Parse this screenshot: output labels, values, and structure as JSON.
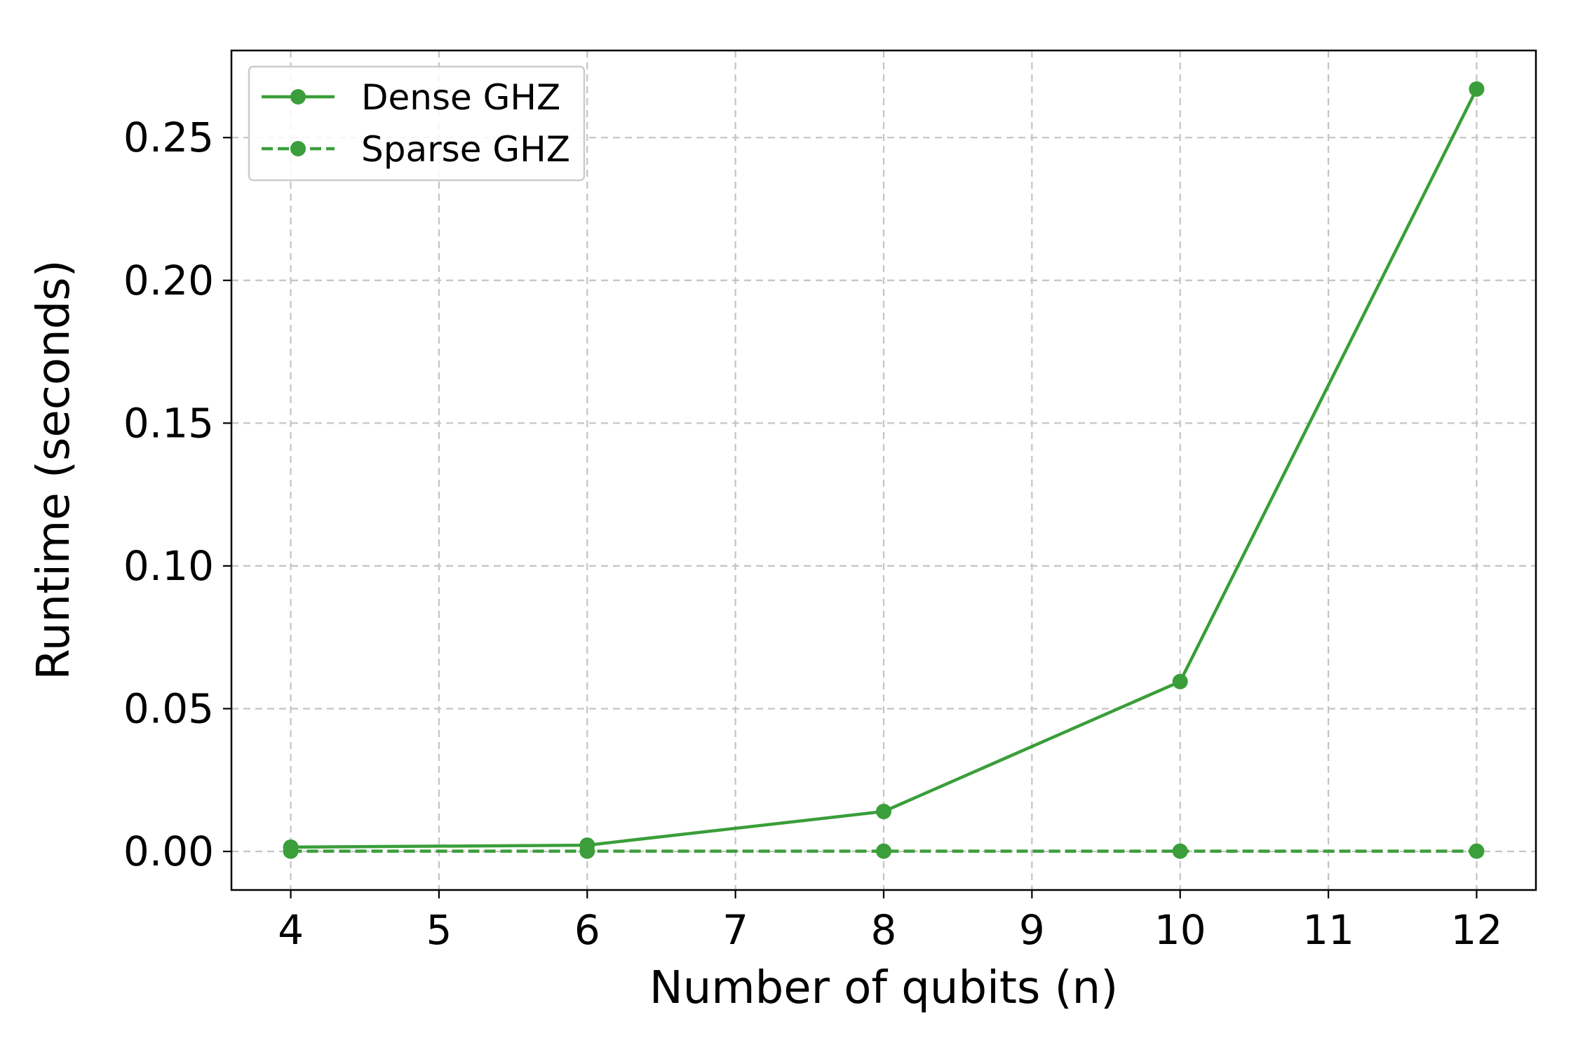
{
  "chart_data": {
    "type": "line",
    "title": "",
    "xlabel": "Number of qubits (n)",
    "ylabel": "Runtime (seconds)",
    "xlim": [
      3.6,
      12.4
    ],
    "ylim": [
      -0.0135,
      0.2805
    ],
    "xticks": [
      4,
      5,
      6,
      7,
      8,
      9,
      10,
      11,
      12
    ],
    "xtick_labels": [
      "4",
      "5",
      "6",
      "7",
      "8",
      "9",
      "10",
      "11",
      "12"
    ],
    "yticks": [
      0.0,
      0.05,
      0.1,
      0.15,
      0.2,
      0.25
    ],
    "ytick_labels": [
      "0.00",
      "0.05",
      "0.10",
      "0.15",
      "0.20",
      "0.25"
    ],
    "grid": true,
    "legend_position": "top-left",
    "x": [
      4,
      6,
      8,
      10,
      12
    ],
    "series": [
      {
        "name": "Dense GHZ",
        "values": [
          0.0015,
          0.0022,
          0.014,
          0.0595,
          0.267
        ],
        "color": "#3a9e3a",
        "linestyle": "solid",
        "marker": "circle"
      },
      {
        "name": "Sparse GHZ",
        "values": [
          0.0001,
          0.0001,
          0.0001,
          0.0001,
          0.0001
        ],
        "color": "#3a9e3a",
        "linestyle": "dashed",
        "marker": "circle"
      }
    ]
  }
}
